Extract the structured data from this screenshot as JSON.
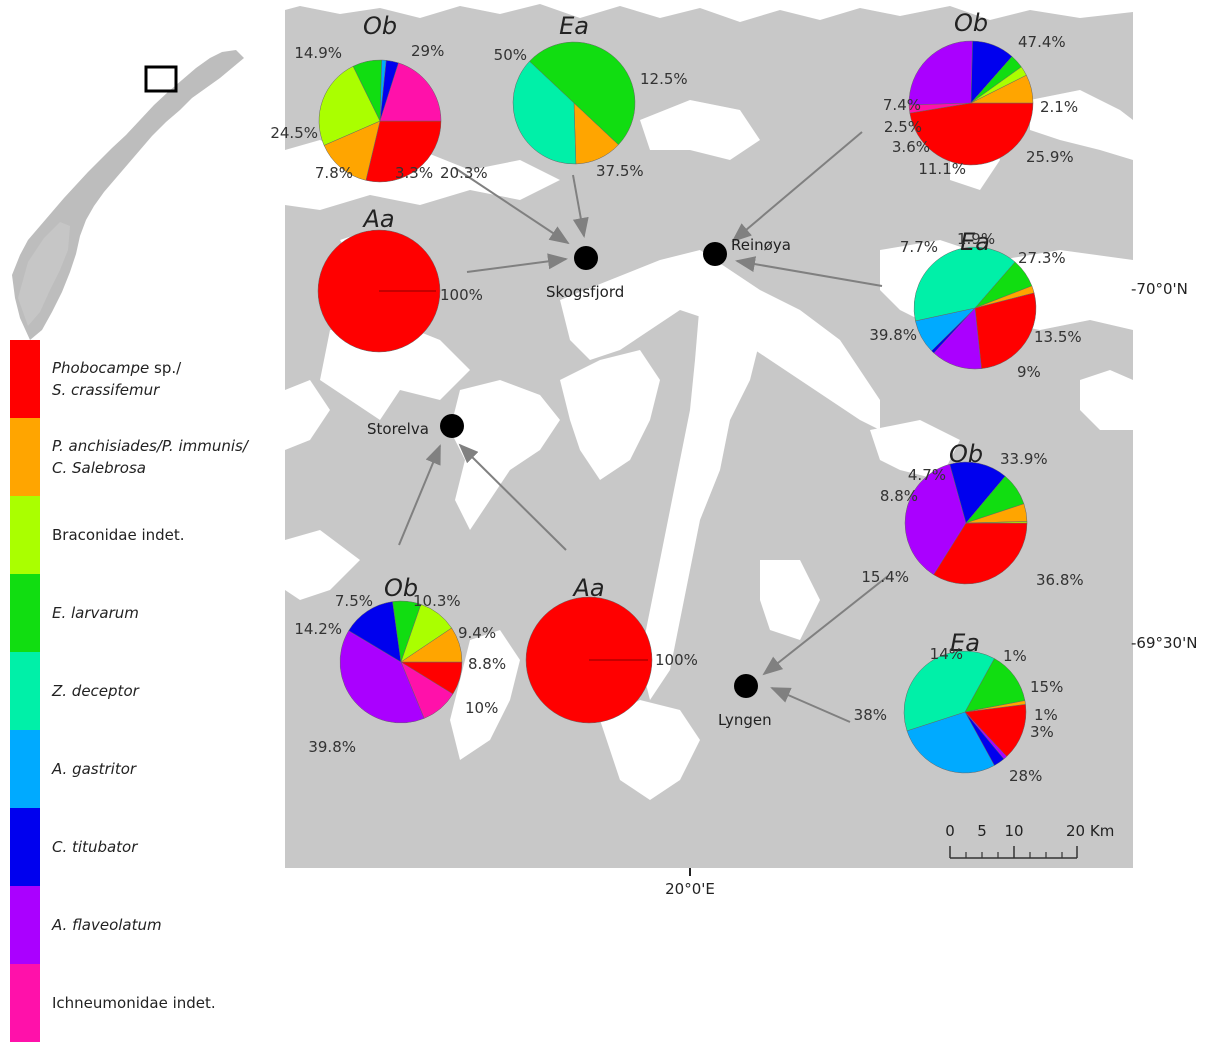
{
  "map": {
    "latitude_labels": [
      "-70°0'N",
      "-69°30'N"
    ],
    "longitude_label": "20°0'E",
    "scale_bar": {
      "ticks": [
        "0",
        "5",
        "10",
        "20 Km"
      ]
    },
    "sites": [
      "Skogsfjord",
      "Reinøya",
      "Storelva",
      "Lyngen"
    ]
  },
  "legend": [
    {
      "line1": "Phobocampe",
      "line1_rest": " sp./",
      "line2": "S. crassifemur",
      "color": "#ff0000"
    },
    {
      "line1": "P. anchisiades/P. immunis/",
      "line2": "C. Salebrosa",
      "color": "#ffa500"
    },
    {
      "line1": "Braconidae indet.",
      "color": "#aaff00"
    },
    {
      "line1": "E. larvarum",
      "color": "#11dd11"
    },
    {
      "line1": "Z. deceptor",
      "color": "#00f0a8"
    },
    {
      "line1": "A. gastritor",
      "color": "#00aaff"
    },
    {
      "line1": "C. titubator",
      "color": "#0000ee"
    },
    {
      "line1": "A. flaveolatum",
      "color": "#aa00ff"
    },
    {
      "line1": "Ichneumonidae indet.",
      "color": "#ff11aa"
    }
  ],
  "chart_data": [
    {
      "type": "pie",
      "title": "Ob",
      "site": "Skogsfjord",
      "values": [
        29,
        14.9,
        24.5,
        7.8,
        1.2,
        3.3,
        20.3
      ],
      "labels": [
        "29%",
        "14.9%",
        "24.5%",
        "7.8%",
        "",
        "3.3%",
        "20.3%"
      ],
      "colors": [
        "#ff0000",
        "#ffa500",
        "#aaff00",
        "#11dd11",
        "#00aaff",
        "#0000ee",
        "#ff11aa"
      ]
    },
    {
      "type": "pie",
      "title": "Ea",
      "site": "Skogsfjord",
      "values": [
        12.5,
        37.5,
        50
      ],
      "labels": [
        "12.5%",
        "37.5%",
        "50%"
      ],
      "colors": [
        "#ffa500",
        "#00f0a8",
        "#11dd11"
      ]
    },
    {
      "type": "pie",
      "title": "Aa",
      "site": "Skogsfjord",
      "values": [
        100
      ],
      "labels": [
        "100%"
      ],
      "colors": [
        "#ff0000"
      ]
    },
    {
      "type": "pie",
      "title": "Ob",
      "site": "Reinøya",
      "values": [
        47.4,
        2.1,
        25.9,
        11.1,
        3.6,
        2.5,
        7.4
      ],
      "labels": [
        "47.4%",
        "2.1%",
        "25.9%",
        "11.1%",
        "3.6%",
        "2.5%",
        "7.4%"
      ],
      "colors": [
        "#ff0000",
        "#ff11aa",
        "#aa00ff",
        "#0000ee",
        "#11dd11",
        "#aaff00",
        "#ffa500"
      ]
    },
    {
      "type": "pie",
      "title": "Ea",
      "site": "Reinøya",
      "values": [
        27.3,
        13.5,
        0.8,
        9,
        39.8,
        7.7,
        1.9
      ],
      "labels": [
        "27.3%",
        "13.5%",
        "",
        "9%",
        "39.8%",
        "7.7%",
        "1.9%"
      ],
      "colors": [
        "#ff0000",
        "#aa00ff",
        "#0000ee",
        "#00aaff",
        "#00f0a8",
        "#11dd11",
        "#ffa500"
      ]
    },
    {
      "type": "pie",
      "title": "Ob",
      "site": "Lyngen",
      "values": [
        33.9,
        36.8,
        15.4,
        8.8,
        4.7,
        0.4
      ],
      "labels": [
        "33.9%",
        "36.8%",
        "15.4%",
        "8.8%",
        "4.7%",
        ""
      ],
      "colors": [
        "#ff0000",
        "#aa00ff",
        "#0000ee",
        "#11dd11",
        "#ffa500",
        "#aaff00"
      ]
    },
    {
      "type": "pie",
      "title": "Ea",
      "site": "Lyngen",
      "values": [
        15,
        1,
        3,
        28,
        38,
        14,
        1
      ],
      "labels": [
        "15%",
        "1%",
        "3%",
        "28%",
        "38%",
        "14%",
        "1%"
      ],
      "colors": [
        "#ff0000",
        "#aa00ff",
        "#0000ee",
        "#00aaff",
        "#00f0a8",
        "#11dd11",
        "#ffa500"
      ]
    },
    {
      "type": "pie",
      "title": "Ob",
      "site": "Storelva",
      "values": [
        8.8,
        10,
        39.8,
        14.2,
        7.5,
        10.3,
        9.4
      ],
      "labels": [
        "8.8%",
        "10%",
        "39.8%",
        "14.2%",
        "7.5%",
        "10.3%",
        "9.4%"
      ],
      "colors": [
        "#ff0000",
        "#ff11aa",
        "#aa00ff",
        "#0000ee",
        "#11dd11",
        "#aaff00",
        "#ffa500"
      ]
    },
    {
      "type": "pie",
      "title": "Aa",
      "site": "Storelva",
      "values": [
        100
      ],
      "labels": [
        "100%"
      ],
      "colors": [
        "#ff0000"
      ]
    }
  ]
}
